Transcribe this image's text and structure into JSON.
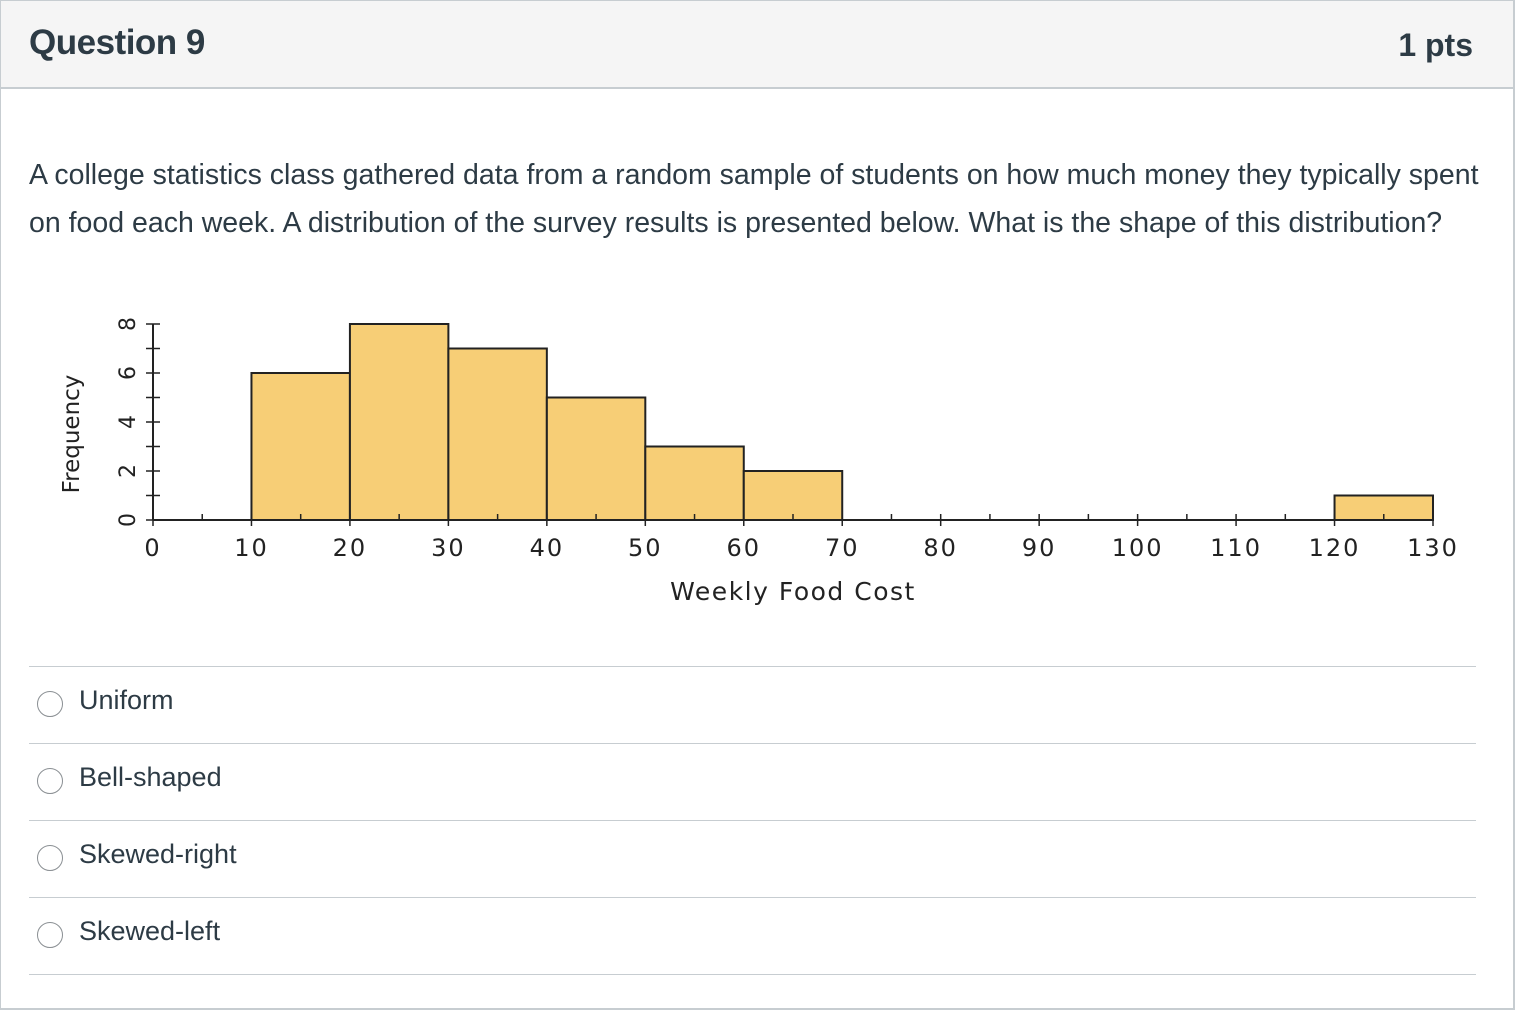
{
  "question": {
    "title": "Question 9",
    "points": "1 pts",
    "text": "A college statistics class gathered data from a random sample of students on how much money they typically spent on food each week.  A distribution of the survey results is presented below.  What is the shape of this distribution?"
  },
  "chart_data": {
    "type": "bar",
    "title": "",
    "xlabel": "Weekly Food Cost",
    "ylabel": "Frequency",
    "bins": [
      {
        "from": 10,
        "to": 20,
        "value": 6
      },
      {
        "from": 20,
        "to": 30,
        "value": 8
      },
      {
        "from": 30,
        "to": 40,
        "value": 7
      },
      {
        "from": 40,
        "to": 50,
        "value": 5
      },
      {
        "from": 50,
        "to": 60,
        "value": 3
      },
      {
        "from": 60,
        "to": 70,
        "value": 2
      },
      {
        "from": 120,
        "to": 130,
        "value": 1
      }
    ],
    "x_ticks": [
      "0",
      "10",
      "20",
      "30",
      "40",
      "50",
      "60",
      "70",
      "80",
      "90",
      "100",
      "110",
      "120",
      "130"
    ],
    "y_ticks": [
      "0",
      "2",
      "4",
      "6",
      "8"
    ],
    "xlim": [
      0,
      130
    ],
    "ylim": [
      0,
      8
    ],
    "bar_color": "#f7ce76",
    "grid": false
  },
  "answers": [
    {
      "label": "Uniform"
    },
    {
      "label": "Bell-shaped"
    },
    {
      "label": "Skewed-right"
    },
    {
      "label": "Skewed-left"
    }
  ]
}
